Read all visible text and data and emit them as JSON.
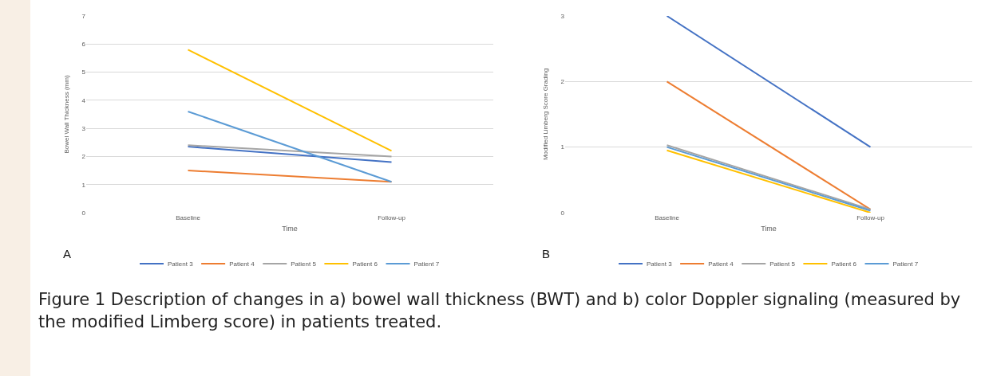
{
  "chart_data": [
    {
      "type": "line",
      "xlabel": "Time",
      "ylabel": "Bowel Wall Thickness (mm)",
      "categories": [
        "Baseline",
        "Follow-up"
      ],
      "ylim": [
        0,
        7
      ],
      "yticks": [
        0,
        1,
        2,
        3,
        4,
        5,
        6,
        7
      ],
      "grid": "y",
      "legend": "bottom",
      "marker": "none",
      "line_style": "solid",
      "series": [
        {
          "name": "Patient 3",
          "color": "#4472c4",
          "values": [
            2.35,
            1.8
          ]
        },
        {
          "name": "Patient 4",
          "color": "#ed7d31",
          "values": [
            1.5,
            1.1
          ]
        },
        {
          "name": "Patient 5",
          "color": "#a5a5a5",
          "values": [
            2.4,
            2.0
          ]
        },
        {
          "name": "Patient 6",
          "color": "#ffc000",
          "values": [
            5.8,
            2.2
          ]
        },
        {
          "name": "Patient 7",
          "color": "#5b9bd5",
          "values": [
            3.6,
            1.1
          ]
        }
      ],
      "annotations": [
        "A",
        "Figure 1 Description of changes in a) bowel wall thickness (BWT) and b) color Doppler signaling (measured by the modified Limberg score) in patients treated."
      ]
    },
    {
      "type": "line",
      "xlabel": "Time",
      "ylabel": "Modified Limberg Score Grading",
      "categories": [
        "Baseline",
        "Follow-up"
      ],
      "ylim": [
        0,
        3
      ],
      "yticks": [
        0,
        1,
        2,
        3
      ],
      "grid": "y",
      "legend": "bottom",
      "marker": "none",
      "line_style": "solid",
      "series": [
        {
          "name": "Patient 3",
          "color": "#4472c4",
          "values": [
            3,
            1
          ]
        },
        {
          "name": "Patient 4",
          "color": "#ed7d31",
          "values": [
            2,
            0.05
          ]
        },
        {
          "name": "Patient 5",
          "color": "#a5a5a5",
          "values": [
            1.03,
            0.05
          ]
        },
        {
          "name": "Patient 6",
          "color": "#ffc000",
          "values": [
            0.95,
            0
          ]
        },
        {
          "name": "Patient 7",
          "color": "#5b9bd5",
          "values": [
            1,
            0.03
          ]
        }
      ],
      "annotations": [
        "B"
      ]
    }
  ]
}
